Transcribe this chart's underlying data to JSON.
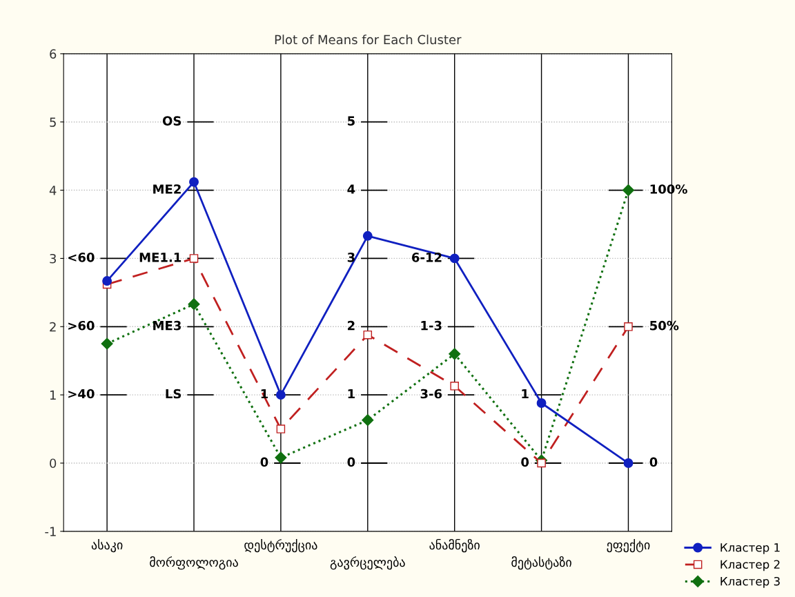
{
  "chart_data": {
    "type": "line",
    "title": "Plot of Means for Each Cluster",
    "categories": [
      "ასაკი",
      "მორფოლოგია",
      "დესტრუქცია",
      "გავრცელება",
      "ანამნეზი",
      "მეტასტაზი",
      "ეფექტი"
    ],
    "series": [
      {
        "name": "Кластер 1",
        "color": "#1020c0",
        "marker": "circle",
        "line_style": "solid",
        "values": [
          2.67,
          4.12,
          1.0,
          3.33,
          3.0,
          0.88,
          0.0
        ]
      },
      {
        "name": "Кластер 2",
        "color": "#c02020",
        "marker": "square",
        "line_style": "dashed",
        "values": [
          2.62,
          3.0,
          0.5,
          1.88,
          1.13,
          0.0,
          2.0
        ]
      },
      {
        "name": "Кластер 3",
        "color": "#107010",
        "marker": "diamond",
        "line_style": "dotted",
        "values": [
          1.75,
          2.33,
          0.08,
          0.63,
          1.6,
          0.04,
          4.0
        ]
      }
    ],
    "ylim": [
      -1,
      6
    ],
    "yticks": [
      -1,
      0,
      1,
      2,
      3,
      4,
      5,
      6
    ],
    "grid": true,
    "legend": "bottom right",
    "annotations": [
      "<60",
      ">60",
      ">40",
      "OS",
      "ME2",
      "ME1.1",
      "ME3",
      "LS",
      "1",
      "0",
      "5",
      "4",
      "3",
      "2",
      "1",
      "0",
      "6-12",
      "1-3",
      "3-6",
      "1",
      "0",
      "100%",
      "50%",
      "0"
    ]
  }
}
